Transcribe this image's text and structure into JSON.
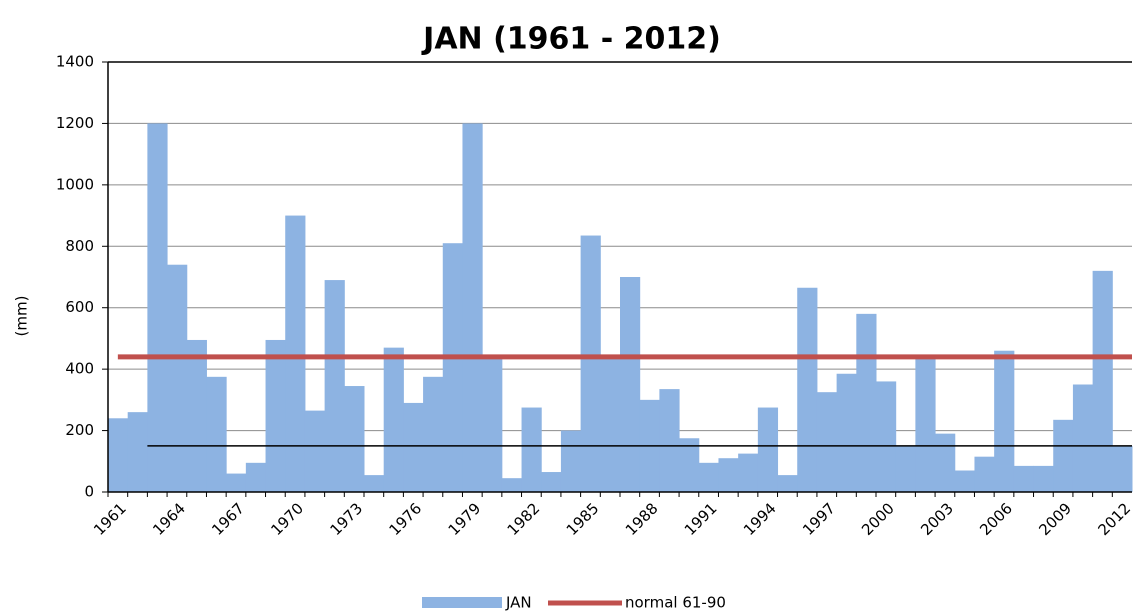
{
  "chart_data": {
    "type": "bar",
    "title": "JAN (1961 - 2012)",
    "y_label": "(mm)",
    "categories": [
      "1961",
      null,
      null,
      "1964",
      null,
      null,
      "1967",
      null,
      null,
      "1970",
      null,
      null,
      "1973",
      null,
      null,
      "1976",
      null,
      null,
      "1979",
      null,
      null,
      "1982",
      null,
      null,
      "1985",
      null,
      null,
      "1988",
      null,
      null,
      "1991",
      null,
      null,
      "1994",
      null,
      null,
      "1997",
      null,
      null,
      "2000",
      null,
      null,
      "2003",
      null,
      null,
      "2006",
      null,
      null,
      "2009",
      null,
      null,
      "2012"
    ],
    "series": [
      {
        "name": "JAN",
        "color": "#8db3e2",
        "values": [
          240,
          260,
          1200,
          740,
          495,
          375,
          60,
          95,
          495,
          900,
          265,
          690,
          345,
          55,
          470,
          290,
          375,
          810,
          1200,
          435,
          45,
          275,
          65,
          200,
          835,
          435,
          700,
          300,
          335,
          175,
          95,
          110,
          125,
          275,
          55,
          665,
          325,
          385,
          580,
          360,
          150,
          440,
          190,
          70,
          115,
          460,
          85,
          85,
          235,
          350,
          720,
          150
        ]
      },
      {
        "name": "normal 61-90",
        "color": "#c0504d",
        "value": 440
      }
    ],
    "reference_line": {
      "value": 150,
      "color": "#000000"
    },
    "ylim": [
      0,
      1400
    ],
    "yticks": [
      0,
      200,
      400,
      600,
      800,
      1000,
      1200,
      1400
    ],
    "grid": true
  }
}
